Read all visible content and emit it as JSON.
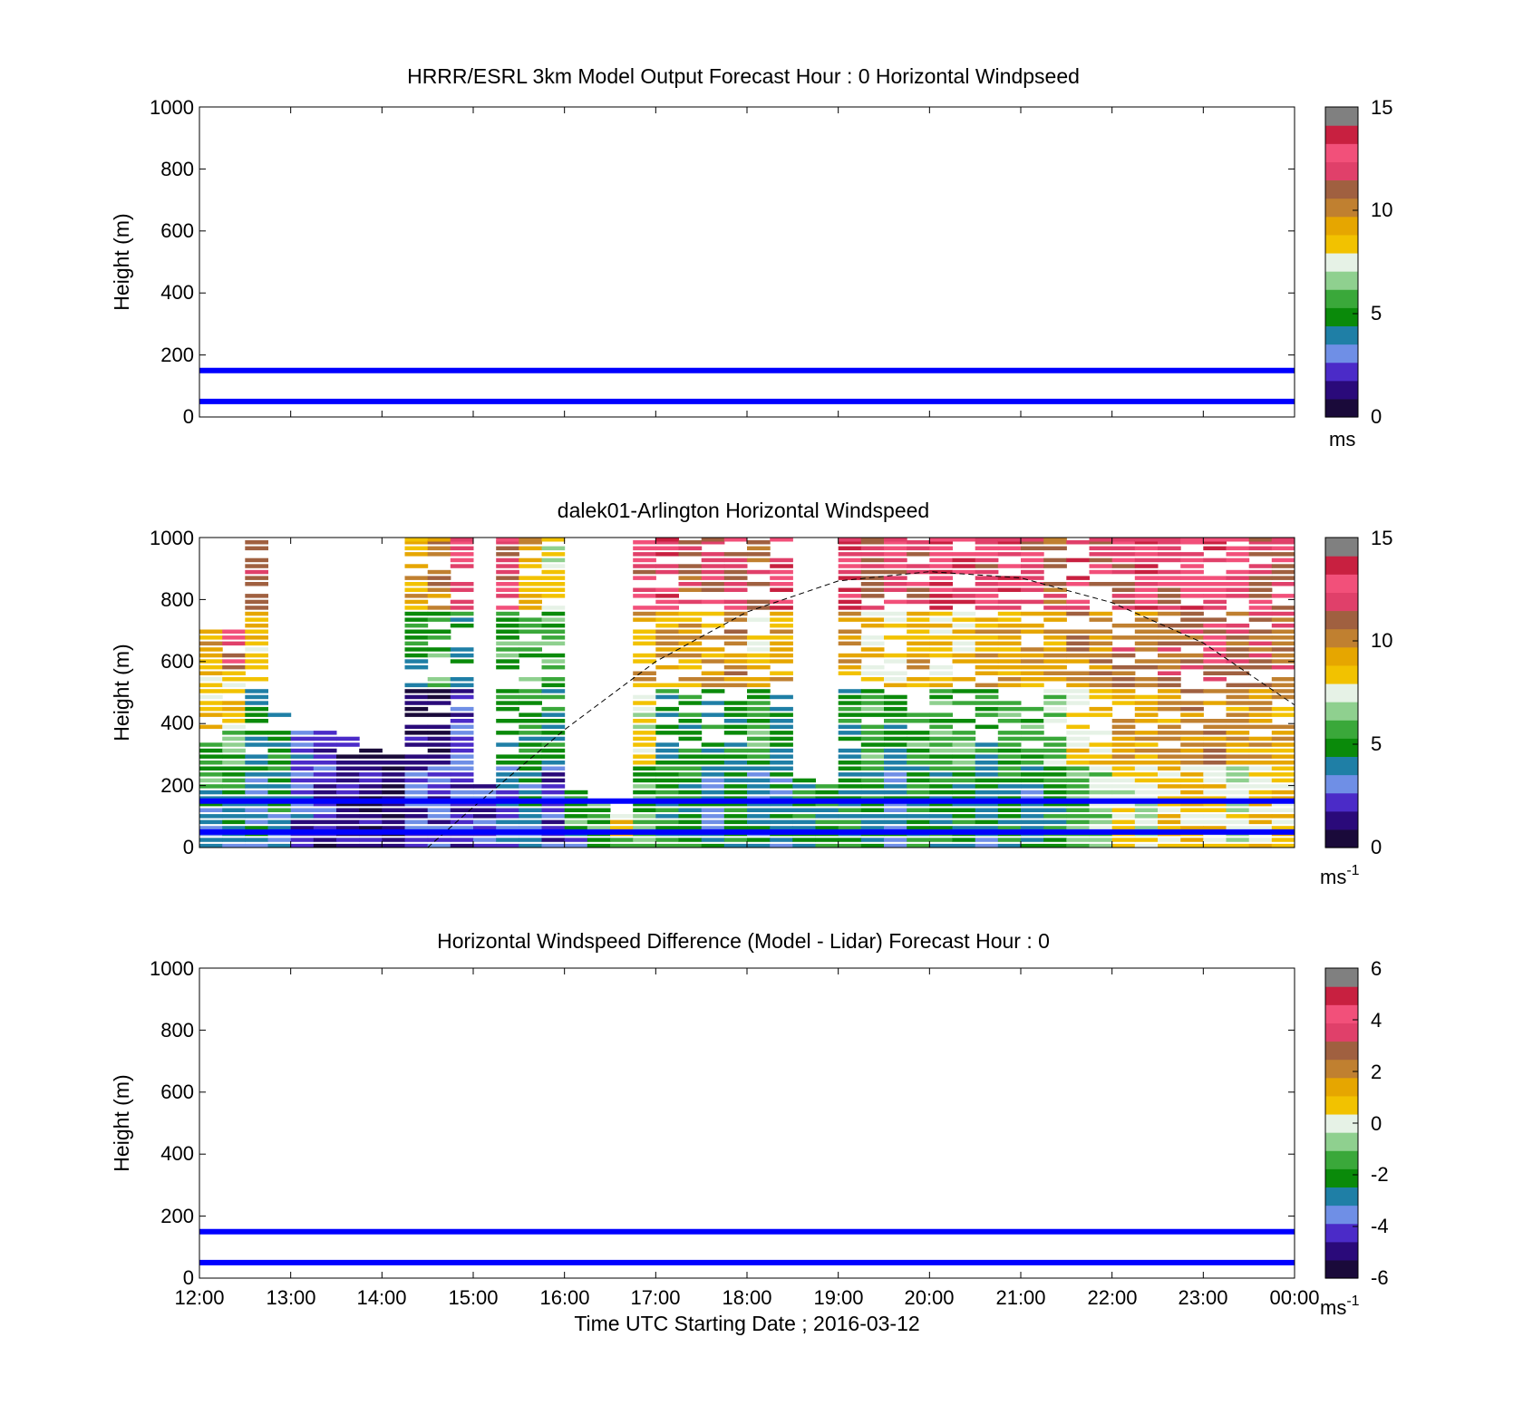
{
  "x_axis": {
    "label": "Time UTC  Starting Date ; 2016-03-12",
    "ticks": [
      "12:00",
      "13:00",
      "14:00",
      "15:00",
      "16:00",
      "17:00",
      "18:00",
      "19:00",
      "20:00",
      "21:00",
      "22:00",
      "23:00",
      "00:00"
    ]
  },
  "colors": {
    "reference_lines": "#0000ff",
    "speed_palette": [
      "#1a0a3a",
      "#2a0a7a",
      "#4b2bc8",
      "#6f8fe6",
      "#1f7fa6",
      "#0a8a0a",
      "#3aa83a",
      "#8fd08f",
      "#e6f2e6",
      "#f2c200",
      "#e6a600",
      "#c08030",
      "#a06040",
      "#e0406a",
      "#f2507a",
      "#c82040",
      "#808080"
    ]
  },
  "chart_data": [
    {
      "type": "heatmap",
      "title": "HRRR/ESRL 3km Model Output   Forecast Hour : 0 Horizontal Windpseed",
      "ylabel": "Height (m)",
      "ylim": [
        0,
        1000
      ],
      "yticks": [
        "0",
        "200",
        "400",
        "600",
        "800",
        "1000"
      ],
      "xlim": [
        "12:00",
        "00:00"
      ],
      "reference_heights_m": [
        50,
        150
      ],
      "colorbar": {
        "range": [
          0,
          15
        ],
        "ticks": [
          "0",
          "5",
          "10",
          "15"
        ],
        "unit": "ms"
      },
      "grid": false,
      "data": []
    },
    {
      "type": "heatmap",
      "title": "dalek01-Arlington  Horizontal Windspeed",
      "ylabel": "Height (m)",
      "ylim": [
        0,
        1000
      ],
      "yticks": [
        "0",
        "200",
        "400",
        "600",
        "800",
        "1000"
      ],
      "xlim": [
        "12:00",
        "00:00"
      ],
      "reference_heights_m": [
        50,
        150
      ],
      "colorbar": {
        "range": [
          0,
          15
        ],
        "ticks": [
          "0",
          "5",
          "10",
          "15"
        ],
        "unit": "ms",
        "unit_exponent": "-1"
      },
      "grid": false,
      "boundary_layer_curve": [
        {
          "time": "14:30",
          "height_m": 0
        },
        {
          "time": "15:00",
          "height_m": 130
        },
        {
          "time": "16:00",
          "height_m": 380
        },
        {
          "time": "17:00",
          "height_m": 600
        },
        {
          "time": "18:00",
          "height_m": 760
        },
        {
          "time": "19:00",
          "height_m": 860
        },
        {
          "time": "20:00",
          "height_m": 890
        },
        {
          "time": "21:00",
          "height_m": 870
        },
        {
          "time": "22:00",
          "height_m": 790
        },
        {
          "time": "23:00",
          "height_m": 660
        },
        {
          "time": "00:00",
          "height_m": 460
        }
      ],
      "profiles_time_bins": [
        "12:00",
        "12:15",
        "12:30",
        "12:45",
        "13:00",
        "13:15",
        "13:30",
        "13:45",
        "14:00",
        "14:15",
        "14:30",
        "14:45",
        "15:00",
        "15:15",
        "15:30",
        "15:45",
        "16:00",
        "16:15",
        "16:30",
        "16:45",
        "17:00",
        "17:15",
        "17:30",
        "17:45",
        "18:00",
        "18:15",
        "18:30",
        "18:45",
        "19:00",
        "19:15",
        "19:30",
        "19:45",
        "20:00",
        "20:15",
        "20:30",
        "20:45",
        "21:00",
        "21:15",
        "21:30",
        "21:45",
        "22:00",
        "22:15",
        "22:30",
        "22:45",
        "23:00",
        "23:15",
        "23:30",
        "23:45"
      ],
      "profile_tops_m": [
        720,
        750,
        1000,
        440,
        380,
        390,
        360,
        310,
        310,
        1000,
        1000,
        1000,
        210,
        1000,
        1000,
        1000,
        180,
        140,
        110,
        1000,
        1000,
        1000,
        1000,
        1000,
        1000,
        1000,
        220,
        200,
        1000,
        1000,
        1000,
        1000,
        1000,
        1000,
        1000,
        1000,
        1000,
        1000,
        1000,
        1000,
        1000,
        1000,
        1000,
        1000,
        1000,
        1000,
        1000,
        1000
      ],
      "windspeed_ms": [
        [
          4,
          6,
          9,
          10
        ],
        [
          4,
          6,
          9,
          13
        ],
        [
          4,
          5,
          9,
          12
        ],
        [
          4,
          5,
          5,
          5
        ],
        [
          2,
          3,
          3,
          3
        ],
        [
          1,
          2,
          2,
          2
        ],
        [
          1,
          1,
          1,
          1
        ],
        [
          1,
          1,
          1,
          1
        ],
        [
          1,
          1,
          1,
          1
        ],
        [
          2,
          1,
          5,
          10
        ],
        [
          2,
          1,
          6,
          11
        ],
        [
          2,
          2,
          5,
          13
        ],
        [
          2,
          2,
          2,
          2
        ],
        [
          3,
          5,
          6,
          13
        ],
        [
          4,
          5,
          6,
          10
        ],
        [
          2,
          5,
          6,
          8
        ],
        [
          3,
          6,
          6,
          6
        ],
        [
          5,
          6,
          6,
          6
        ],
        [
          6,
          9,
          9,
          9
        ],
        [
          6,
          8,
          10,
          13
        ],
        [
          5,
          5,
          10,
          14
        ],
        [
          5,
          5,
          10,
          12
        ],
        [
          4,
          5,
          10,
          13
        ],
        [
          5,
          5,
          11,
          13
        ],
        [
          4,
          6,
          9,
          12
        ],
        [
          4,
          5,
          10,
          14
        ],
        [
          4,
          5,
          5,
          5
        ],
        [
          5,
          5,
          5,
          5
        ],
        [
          5,
          5,
          10,
          14
        ],
        [
          5,
          6,
          9,
          12
        ],
        [
          4,
          5,
          9,
          13
        ],
        [
          5,
          6,
          10,
          13
        ],
        [
          5,
          6,
          9,
          14
        ],
        [
          5,
          6,
          9,
          14
        ],
        [
          4,
          5,
          10,
          13
        ],
        [
          5,
          6,
          10,
          14
        ],
        [
          4,
          6,
          10,
          13
        ],
        [
          5,
          7,
          10,
          12
        ],
        [
          6,
          9,
          11,
          14
        ],
        [
          7,
          9,
          11,
          13
        ],
        [
          8,
          10,
          12,
          13
        ],
        [
          8,
          10,
          11,
          14
        ],
        [
          9,
          10,
          12,
          13
        ],
        [
          9,
          11,
          12,
          14
        ],
        [
          9,
          11,
          13,
          14
        ],
        [
          8,
          10,
          12,
          14
        ],
        [
          9,
          10,
          12,
          13
        ],
        [
          9,
          10,
          12,
          13
        ]
      ]
    },
    {
      "type": "heatmap",
      "title": "Horizontal Windspeed Difference (Model - Lidar) Forecast Hour : 0",
      "ylabel": "Height (m)",
      "ylim": [
        0,
        1000
      ],
      "yticks": [
        "0",
        "200",
        "400",
        "600",
        "800",
        "1000"
      ],
      "xlim": [
        "12:00",
        "00:00"
      ],
      "reference_heights_m": [
        50,
        150
      ],
      "colorbar": {
        "range": [
          -6,
          6
        ],
        "ticks": [
          "-6",
          "-4",
          "-2",
          "0",
          "2",
          "4",
          "6"
        ],
        "unit": "ms",
        "unit_exponent": "-1"
      },
      "grid": false,
      "data": []
    }
  ]
}
